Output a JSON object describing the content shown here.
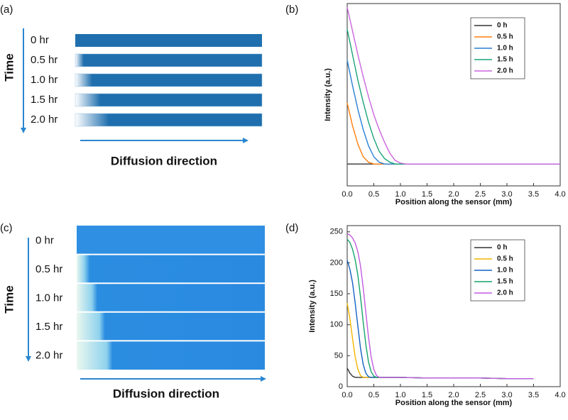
{
  "panels": [
    {
      "label": "(a)",
      "axis_label": "Time",
      "rows": [
        "0 hr",
        "0.5 hr",
        "1.0 hr",
        "1.5 hr",
        "2.0 hr"
      ],
      "direction_label": "Diffusion direction"
    },
    {
      "label": "(c)",
      "axis_label": "Time",
      "rows": [
        "0 hr",
        "0.5 hr",
        "1.0 hr",
        "1.5 hr",
        "2.0 hr"
      ],
      "direction_label": "Diffusion direction"
    }
  ],
  "chart_data": [
    {
      "type": "line",
      "label": "(b)",
      "x_label": "Position along the sensor (mm)",
      "y_label": "Intensity (a.u.)",
      "xlim": [
        0,
        4
      ],
      "ylim": [
        0,
        1
      ],
      "xticks": [
        {
          "value": 0,
          "label": "0.0"
        },
        {
          "value": 0.5,
          "label": "0.5"
        },
        {
          "value": 1,
          "label": "1.0"
        },
        {
          "value": 1.5,
          "label": "1.5"
        },
        {
          "value": 2,
          "label": "2.0"
        },
        {
          "value": 2.5,
          "label": "2.5"
        },
        {
          "value": 3,
          "label": "3.0"
        },
        {
          "value": 3.5,
          "label": "3.5"
        },
        {
          "value": 4,
          "label": "4.0"
        }
      ],
      "legend": "upper right",
      "x": [
        0,
        0.1,
        0.2,
        0.3,
        0.4,
        0.5,
        0.6,
        0.7,
        0.8,
        0.9,
        1.0,
        1.1,
        1.5,
        2.0,
        3.0,
        4.0
      ],
      "series": [
        {
          "name": "0 h",
          "color": "#333333",
          "values": [
            0.12,
            0.12,
            0.12,
            0.12,
            0.12,
            0.12,
            0.12,
            0.12,
            0.12,
            0.12,
            0.12,
            0.12,
            0.12,
            0.12,
            0.12,
            0.12
          ]
        },
        {
          "name": "0.5 h",
          "color": "#ff7f0e",
          "values": [
            0.455,
            0.33,
            0.23,
            0.16,
            0.13,
            0.12,
            0.12,
            0.12,
            0.12,
            0.12,
            0.12,
            0.12,
            0.12,
            0.12,
            0.12,
            0.12
          ]
        },
        {
          "name": "1.0 h",
          "color": "#2a7fd4",
          "values": [
            0.69,
            0.55,
            0.42,
            0.31,
            0.22,
            0.16,
            0.13,
            0.12,
            0.12,
            0.12,
            0.12,
            0.12,
            0.12,
            0.12,
            0.12,
            0.12
          ]
        },
        {
          "name": "1.5 h",
          "color": "#1aa37a",
          "values": [
            0.86,
            0.72,
            0.58,
            0.46,
            0.35,
            0.26,
            0.19,
            0.15,
            0.13,
            0.12,
            0.12,
            0.12,
            0.12,
            0.12,
            0.12,
            0.12
          ]
        },
        {
          "name": "2.0 h",
          "color": "#cc66e0",
          "values": [
            0.98,
            0.85,
            0.72,
            0.6,
            0.49,
            0.39,
            0.31,
            0.24,
            0.18,
            0.14,
            0.125,
            0.12,
            0.12,
            0.12,
            0.12,
            0.12
          ]
        }
      ]
    },
    {
      "type": "line",
      "label": "(d)",
      "x_label": "Position along the sensor (mm)",
      "y_label": "Intensity (a.u.)",
      "xlim": [
        0,
        4
      ],
      "ylim": [
        0,
        260
      ],
      "xticks": [
        {
          "value": 0,
          "label": "0.0"
        },
        {
          "value": 0.5,
          "label": "0.5"
        },
        {
          "value": 1,
          "label": "1.0"
        },
        {
          "value": 1.5,
          "label": "1.5"
        },
        {
          "value": 2,
          "label": "2.0"
        },
        {
          "value": 2.5,
          "label": "2.5"
        },
        {
          "value": 3,
          "label": "3.0"
        },
        {
          "value": 3.5,
          "label": "3.5"
        },
        {
          "value": 4,
          "label": "4.0"
        }
      ],
      "yticks": [
        0,
        50,
        100,
        150,
        200,
        250
      ],
      "legend": "upper right",
      "x": [
        0,
        0.05,
        0.1,
        0.15,
        0.2,
        0.25,
        0.3,
        0.35,
        0.4,
        0.45,
        0.5,
        0.55,
        0.6,
        0.7,
        1.0,
        1.5,
        2.0,
        2.5,
        3.0,
        3.5
      ],
      "series": [
        {
          "name": "0 h",
          "color": "#333333",
          "values": [
            30,
            22,
            17,
            15,
            15,
            15,
            15,
            15,
            15,
            15,
            15,
            15,
            15,
            15,
            15,
            14,
            14,
            14,
            13,
            13
          ]
        },
        {
          "name": "0.5 h",
          "color": "#f2b600",
          "values": [
            135,
            110,
            78,
            48,
            28,
            18,
            15,
            15,
            15,
            15,
            15,
            15,
            15,
            15,
            15,
            14,
            14,
            14,
            13,
            13
          ]
        },
        {
          "name": "1.0 h",
          "color": "#1560c4",
          "values": [
            204,
            190,
            168,
            135,
            98,
            62,
            36,
            22,
            16,
            15,
            15,
            15,
            15,
            15,
            15,
            14,
            14,
            14,
            13,
            13
          ]
        },
        {
          "name": "1.5 h",
          "color": "#16a36b",
          "values": [
            238,
            233,
            222,
            205,
            180,
            145,
            105,
            68,
            40,
            24,
            17,
            15,
            15,
            15,
            15,
            14,
            14,
            14,
            13,
            13
          ]
        },
        {
          "name": "2.0 h",
          "color": "#c35ce0",
          "values": [
            247,
            245,
            240,
            232,
            218,
            195,
            160,
            120,
            80,
            48,
            28,
            18,
            15,
            15,
            15,
            14,
            14,
            14,
            13,
            13
          ]
        }
      ]
    }
  ]
}
